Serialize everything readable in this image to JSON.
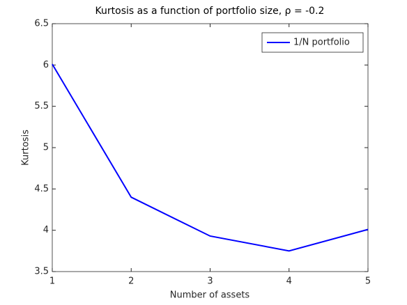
{
  "chart_data": {
    "type": "line",
    "title": "Kurtosis as a function of portfolio size, ρ = -0.2",
    "x_label": "Number of assets",
    "y_label": "Kurtosis",
    "x": [
      1,
      2,
      3,
      4,
      5
    ],
    "series": [
      {
        "name": "1/N portfolio",
        "color": "#0000ff",
        "values": [
          6.01,
          4.4,
          3.93,
          3.75,
          4.01
        ]
      }
    ],
    "xlim": [
      1,
      5
    ],
    "xticks": [
      1,
      2,
      3,
      4,
      5
    ],
    "ylim": [
      3.5,
      6.5
    ],
    "yticks": [
      3.5,
      4,
      4.5,
      5,
      5.5,
      6,
      6.5
    ],
    "grid": false,
    "legend": "northeast"
  }
}
